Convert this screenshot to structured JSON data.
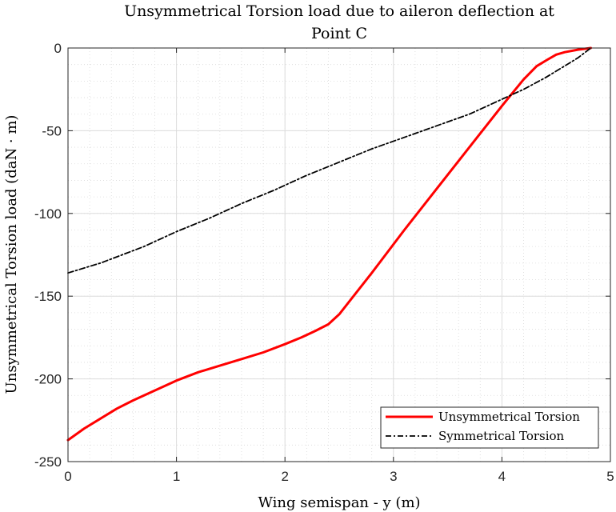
{
  "chart_data": {
    "type": "line",
    "title_line1": "Unsymmetrical Torsion load due to aileron deflection at",
    "title_line2": "Point C",
    "xlabel": "Wing semispan - y (m)",
    "ylabel": "Unsymmetrical Torsion load (daN · m)",
    "xlim": [
      0,
      5
    ],
    "ylim": [
      -250,
      0
    ],
    "xticks": [
      0,
      1,
      2,
      3,
      4,
      5
    ],
    "yticks": [
      0,
      -50,
      -100,
      -150,
      -200,
      -250
    ],
    "grid": true,
    "minor_grid": true,
    "legend_position": "bottom-right",
    "series": [
      {
        "name": "Unsymmetrical Torsion",
        "color": "#ff0000",
        "style": "solid",
        "x": [
          0,
          0.15,
          0.3,
          0.45,
          0.6,
          0.8,
          1.0,
          1.2,
          1.4,
          1.6,
          1.8,
          2.0,
          2.15,
          2.28,
          2.4,
          2.5,
          2.8,
          3.1,
          3.4,
          3.7,
          4.0,
          4.2,
          4.32,
          4.42,
          4.5,
          4.58,
          4.7,
          4.82
        ],
        "y": [
          -237,
          -230,
          -224,
          -218,
          -213,
          -207,
          -201,
          -196,
          -192,
          -188,
          -184,
          -179,
          -175,
          -171,
          -167,
          -161,
          -136,
          -110,
          -85,
          -60,
          -35,
          -19,
          -11,
          -7,
          -4,
          -2.5,
          -1,
          0
        ]
      },
      {
        "name": "Symmetrical Torsion",
        "color": "#000000",
        "style": "dashdot",
        "x": [
          0,
          0.15,
          0.3,
          0.5,
          0.7,
          1.0,
          1.3,
          1.6,
          1.9,
          2.2,
          2.5,
          2.8,
          3.1,
          3.4,
          3.7,
          4.0,
          4.2,
          4.4,
          4.55,
          4.7,
          4.82
        ],
        "y": [
          -136,
          -133,
          -130,
          -125,
          -120,
          -111,
          -103,
          -94,
          -86,
          -77,
          -69,
          -61,
          -54,
          -47,
          -40,
          -31,
          -25,
          -18,
          -12,
          -6,
          0
        ]
      }
    ]
  }
}
